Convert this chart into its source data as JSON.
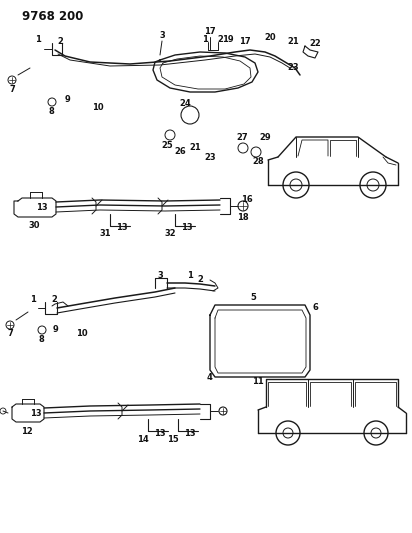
{
  "title": "9768 200",
  "bg_color": "#ffffff",
  "line_color": "#1a1a1a",
  "title_fontsize": 8.5,
  "label_fontsize": 6.0,
  "fig_width": 4.12,
  "fig_height": 5.33,
  "dpi": 100
}
